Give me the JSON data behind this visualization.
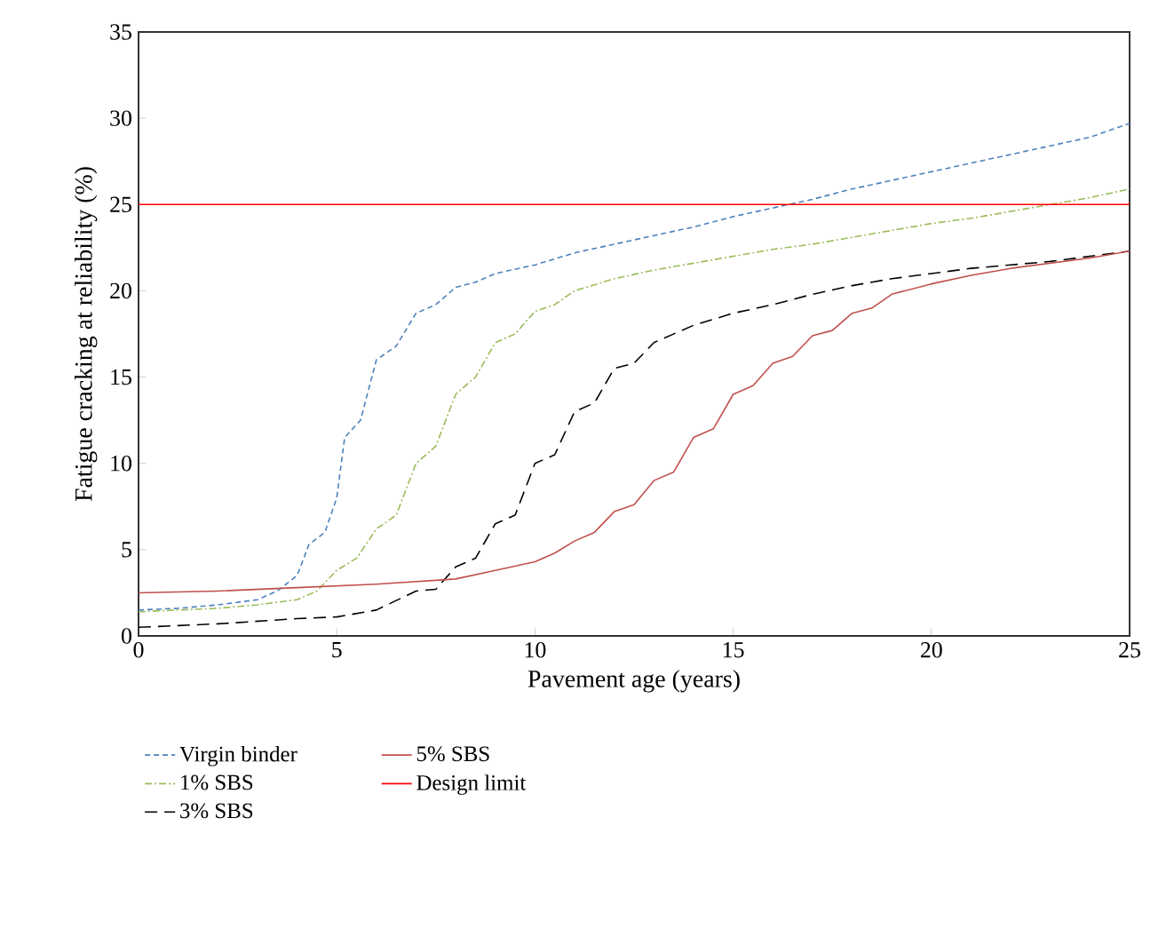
{
  "chart_data": {
    "type": "line",
    "xlabel": "Pavement age (years)",
    "ylabel": "Fatigue cracking at reliability (%)",
    "xlim": [
      0,
      25
    ],
    "ylim": [
      0,
      35
    ],
    "xticks": [
      0,
      5,
      10,
      15,
      20,
      25
    ],
    "yticks": [
      0,
      5,
      10,
      15,
      20,
      25,
      30,
      35
    ],
    "grid": false,
    "legend": "bottom",
    "marker": "none",
    "series": [
      {
        "name": "Virgin binder",
        "color": "#4f81bd",
        "line_style": "dashed",
        "x": [
          0,
          1,
          2,
          3,
          3.5,
          4,
          4.3,
          4.7,
          5,
          5.2,
          5.6,
          6,
          6.5,
          7,
          7.5,
          8,
          8.5,
          9,
          10,
          11,
          12,
          13,
          14,
          15,
          16,
          17,
          18,
          19,
          20,
          21,
          22,
          23,
          24,
          25
        ],
        "values": [
          1.5,
          1.6,
          1.8,
          2.1,
          2.6,
          3.5,
          5.3,
          6,
          8,
          11.5,
          12.5,
          16,
          16.8,
          18.7,
          19.2,
          20.2,
          20.5,
          21,
          21.5,
          22.2,
          22.7,
          23.2,
          23.7,
          24.3,
          24.8,
          25.3,
          25.9,
          26.4,
          26.9,
          27.4,
          27.9,
          28.4,
          28.9,
          29.7
        ]
      },
      {
        "name": "1% SBS",
        "color": "#9bbb59",
        "line_style": "dashdot",
        "x": [
          0,
          1,
          2,
          3,
          4,
          4.5,
          5,
          5.5,
          6,
          6.5,
          7,
          7.5,
          8,
          8.5,
          9,
          9.5,
          10,
          10.5,
          11,
          12,
          13,
          14,
          15,
          16,
          17,
          18,
          19,
          20,
          21,
          22,
          23,
          24,
          25
        ],
        "values": [
          1.4,
          1.5,
          1.6,
          1.8,
          2.1,
          2.6,
          3.8,
          4.5,
          6.2,
          7,
          10,
          11,
          14,
          15,
          17,
          17.5,
          18.8,
          19.2,
          20,
          20.7,
          21.2,
          21.6,
          22,
          22.4,
          22.7,
          23.1,
          23.5,
          23.9,
          24.2,
          24.6,
          25,
          25.4,
          25.9
        ]
      },
      {
        "name": "3% SBS",
        "color": "#000000",
        "line_style": "longdash",
        "x": [
          0,
          1,
          2,
          3,
          4,
          5,
          6,
          7,
          7.5,
          8,
          8.5,
          9,
          9.5,
          10,
          10.5,
          11,
          11.5,
          12,
          12.5,
          13,
          14,
          15,
          16,
          17,
          18,
          19,
          20,
          21,
          22,
          23,
          24,
          25
        ],
        "values": [
          0.5,
          0.6,
          0.7,
          0.85,
          1,
          1.1,
          1.5,
          2.6,
          2.7,
          4,
          4.5,
          6.5,
          7,
          10,
          10.5,
          13,
          13.5,
          15.5,
          15.8,
          17,
          18,
          18.7,
          19.2,
          19.8,
          20.3,
          20.7,
          21,
          21.3,
          21.5,
          21.7,
          22,
          22.3
        ]
      },
      {
        "name": "5% SBS",
        "color": "#c0504d",
        "line_style": "solid",
        "x": [
          0,
          2,
          4,
          6,
          8,
          9,
          10,
          10.5,
          11,
          11.5,
          12,
          12.5,
          13,
          13.5,
          14,
          14.5,
          15,
          15.5,
          16,
          16.5,
          17,
          17.5,
          18,
          18.5,
          19,
          20,
          21,
          22,
          23,
          24,
          25
        ],
        "values": [
          2.5,
          2.6,
          2.8,
          3,
          3.3,
          3.8,
          4.3,
          4.8,
          5.5,
          6,
          7.2,
          7.6,
          9,
          9.5,
          11.5,
          12,
          14,
          14.5,
          15.8,
          16.2,
          17.4,
          17.7,
          18.7,
          19,
          19.8,
          20.4,
          20.9,
          21.3,
          21.6,
          21.9,
          22.3
        ]
      },
      {
        "name": "Design limit",
        "color": "#ff0000",
        "line_style": "solid",
        "x": [
          0,
          25
        ],
        "values": [
          25,
          25
        ]
      }
    ]
  }
}
